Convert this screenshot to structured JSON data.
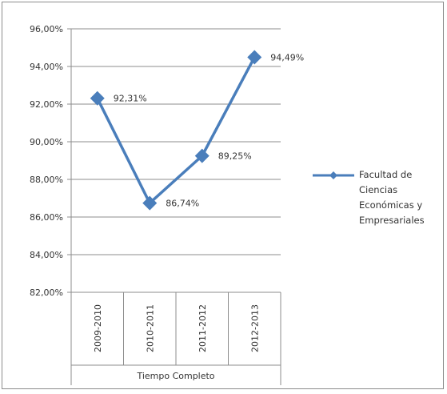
{
  "chart_data": {
    "type": "line",
    "title": "",
    "xlabel": "",
    "ylabel": "",
    "category_group_label": "Tiempo Completo",
    "categories": [
      "2009-2010",
      "2010-2011",
      "2011-2012",
      "2012-2013"
    ],
    "series": [
      {
        "name": "Facultad de Ciencias Económicas y Empresariales",
        "values": [
          92.31,
          86.74,
          89.25,
          94.49
        ],
        "data_labels": [
          "92,31%",
          "86,74%",
          "89,25%",
          "94,49%"
        ],
        "color": "#4a7ebb",
        "marker": "diamond"
      }
    ],
    "ylim": [
      82,
      96
    ],
    "y_ticks": [
      82,
      84,
      86,
      88,
      90,
      92,
      94,
      96
    ],
    "y_tick_labels": [
      "82,00%",
      "84,00%",
      "86,00%",
      "88,00%",
      "90,00%",
      "92,00%",
      "94,00%",
      "96,00%"
    ],
    "grid": true,
    "legend_position": "right"
  }
}
